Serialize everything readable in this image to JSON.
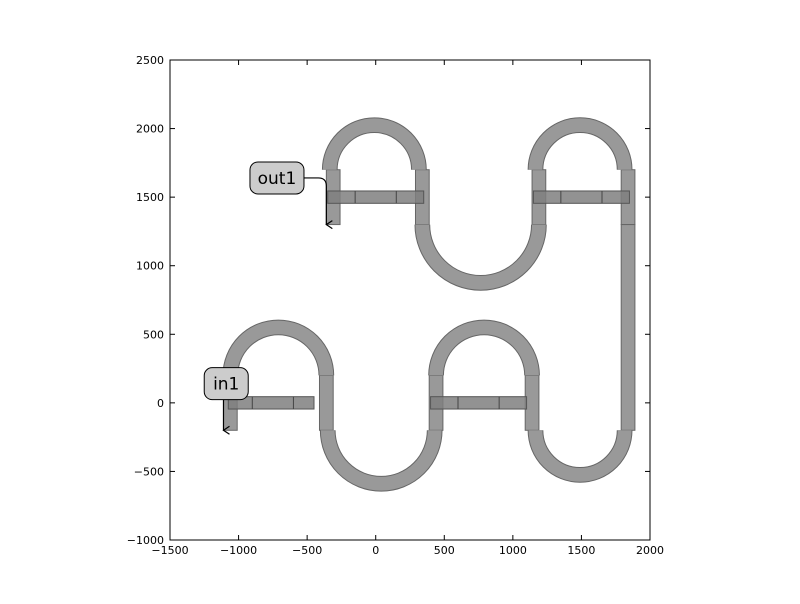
{
  "chart_data": {
    "type": "diagram",
    "xlim": [
      -1500,
      2000
    ],
    "ylim": [
      -1000,
      2500
    ],
    "xticks": [
      -1500,
      -1000,
      -500,
      0,
      500,
      1000,
      1500,
      2000
    ],
    "yticks": [
      -1000,
      -500,
      0,
      500,
      1000,
      1500,
      2000,
      2500
    ],
    "xtick_labels": [
      "−1500",
      "−1000",
      "−500",
      "0",
      "500",
      "1000",
      "1500",
      "2000"
    ],
    "ytick_labels": [
      "−1000",
      "−500",
      "0",
      "500",
      "1000",
      "1500",
      "2000",
      "2500"
    ],
    "ports": [
      {
        "label": "in1",
        "box": [
          -1090,
          140
        ],
        "anchor": [
          -1110,
          -200
        ]
      },
      {
        "label": "out1",
        "box": [
          -720,
          1640
        ],
        "anchor": [
          -360,
          1300
        ]
      }
    ],
    "waveguide_width": 100,
    "bend_radius": 350,
    "sections": [
      {
        "x": [
          -1075,
          -450
        ],
        "y": 0,
        "ticks": [
          -900,
          -600
        ]
      },
      {
        "x": [
          400,
          1100
        ],
        "y": 0,
        "ticks": [
          600,
          900
        ]
      },
      {
        "x": [
          -350,
          350
        ],
        "y": 1500,
        "ticks": [
          -150,
          150
        ]
      },
      {
        "x": [
          1150,
          1850
        ],
        "y": 1500,
        "ticks": [
          1350,
          1650
        ]
      }
    ],
    "colors": {
      "waveguide": "#999999",
      "edge": "#666666",
      "section": "#7f7f7f",
      "label_box": "#cccccc"
    }
  }
}
